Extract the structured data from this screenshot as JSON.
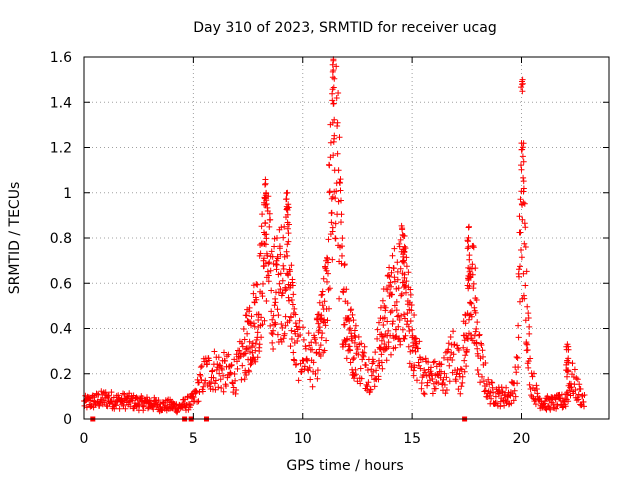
{
  "chart_data": {
    "type": "scatter",
    "title": "Day 310 of 2023, SRMTID for receiver ucag",
    "xlabel": "GPS time / hours",
    "ylabel": "SRMTID / TECUs",
    "xlim": [
      0,
      24
    ],
    "ylim": [
      0,
      1.6
    ],
    "x_ticks": [
      0,
      5,
      10,
      15,
      20
    ],
    "x_tick_labels": [
      "0",
      "5",
      "10",
      "15",
      "20"
    ],
    "y_ticks": [
      0,
      0.2,
      0.4,
      0.6,
      0.8,
      1.0,
      1.2,
      1.4,
      1.6
    ],
    "y_tick_labels": [
      "0",
      "0.2",
      "0.4",
      "0.6",
      "0.8",
      "1",
      "1.2",
      "1.4",
      "1.6"
    ],
    "grid": true,
    "marker": "+",
    "series": [
      {
        "name": "SRMTID",
        "color": "#ff0000",
        "profile": [
          [
            0.0,
            0.07
          ],
          [
            0.5,
            0.08
          ],
          [
            1.0,
            0.09
          ],
          [
            1.5,
            0.08
          ],
          [
            2.0,
            0.08
          ],
          [
            2.5,
            0.07
          ],
          [
            3.0,
            0.07
          ],
          [
            3.5,
            0.06
          ],
          [
            4.0,
            0.06
          ],
          [
            4.3,
            0.05
          ],
          [
            4.5,
            0.06
          ],
          [
            5.0,
            0.08
          ],
          [
            5.5,
            0.2
          ],
          [
            6.0,
            0.22
          ],
          [
            6.5,
            0.2
          ],
          [
            7.0,
            0.2
          ],
          [
            7.5,
            0.35
          ],
          [
            8.0,
            0.5
          ],
          [
            8.3,
            0.8
          ],
          [
            8.6,
            0.55
          ],
          [
            9.0,
            0.6
          ],
          [
            9.3,
            0.7
          ],
          [
            9.7,
            0.3
          ],
          [
            10.0,
            0.3
          ],
          [
            10.5,
            0.25
          ],
          [
            11.0,
            0.45
          ],
          [
            11.3,
            1.0
          ],
          [
            11.5,
            1.3
          ],
          [
            11.8,
            0.6
          ],
          [
            12.2,
            0.35
          ],
          [
            12.7,
            0.25
          ],
          [
            13.2,
            0.2
          ],
          [
            13.7,
            0.4
          ],
          [
            14.2,
            0.55
          ],
          [
            14.6,
            0.6
          ],
          [
            15.0,
            0.35
          ],
          [
            15.5,
            0.2
          ],
          [
            16.0,
            0.18
          ],
          [
            16.5,
            0.2
          ],
          [
            16.9,
            0.3
          ],
          [
            17.2,
            0.2
          ],
          [
            17.5,
            0.4
          ],
          [
            17.8,
            0.6
          ],
          [
            18.0,
            0.3
          ],
          [
            18.5,
            0.12
          ],
          [
            19.0,
            0.1
          ],
          [
            19.5,
            0.1
          ],
          [
            19.8,
            0.2
          ],
          [
            20.0,
            1.0
          ],
          [
            20.2,
            0.6
          ],
          [
            20.4,
            0.2
          ],
          [
            20.7,
            0.1
          ],
          [
            21.0,
            0.07
          ],
          [
            21.5,
            0.07
          ],
          [
            22.0,
            0.08
          ],
          [
            22.3,
            0.18
          ],
          [
            22.6,
            0.12
          ],
          [
            22.9,
            0.07
          ]
        ],
        "peaks": [
          {
            "x": 8.3,
            "y": 1.04
          },
          {
            "x": 9.3,
            "y": 1.0
          },
          {
            "x": 11.4,
            "y": 1.59
          },
          {
            "x": 14.6,
            "y": 0.81
          },
          {
            "x": 17.6,
            "y": 0.85
          },
          {
            "x": 20.05,
            "y": 1.5
          },
          {
            "x": 22.1,
            "y": 0.33
          }
        ],
        "zero_points": [
          0.4,
          4.6,
          4.9,
          5.6,
          17.4
        ]
      }
    ]
  }
}
